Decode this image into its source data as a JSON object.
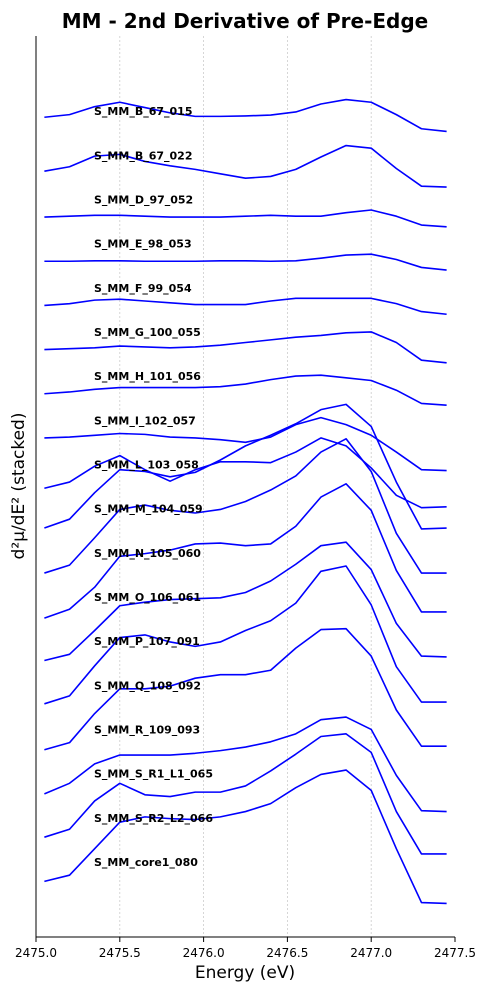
{
  "chart_data": {
    "type": "line",
    "title": "MM - 2nd Derivative of Pre-Edge",
    "xlabel": "Energy (eV)",
    "ylabel": "d²μ/dE² (stacked)",
    "xlim": [
      2475.0,
      2477.5
    ],
    "x_ticks": [
      2475.0,
      2475.5,
      2476.0,
      2476.5,
      2477.0,
      2477.5
    ],
    "x_tick_labels": [
      "2475.0",
      "2475.5",
      "2476.0",
      "2476.5",
      "2477.0",
      "2477.5"
    ],
    "y_ticks_shown": false,
    "grid": "vertical dotted",
    "line_color": "#0000ff",
    "stack_offset": 1,
    "ylim": [
      -1.2,
      19.2
    ],
    "x": [
      2475.05,
      2475.2,
      2475.35,
      2475.5,
      2475.65,
      2475.8,
      2475.95,
      2476.1,
      2476.25,
      2476.4,
      2476.55,
      2476.7,
      2476.85,
      2477.0,
      2477.15,
      2477.3,
      2477.45
    ],
    "series": [
      {
        "name": "S_MM_B_67_015",
        "values": [
          0.36,
          0.42,
          0.6,
          0.7,
          0.58,
          0.46,
          0.38,
          0.38,
          0.39,
          0.41,
          0.48,
          0.66,
          0.76,
          0.7,
          0.42,
          0.1,
          0.04
        ]
      },
      {
        "name": "S_MM_B_67_022",
        "values": [
          0.14,
          0.24,
          0.48,
          0.52,
          0.36,
          0.26,
          0.18,
          0.08,
          -0.02,
          0.02,
          0.18,
          0.46,
          0.72,
          0.66,
          0.2,
          -0.2,
          -0.22
        ]
      },
      {
        "name": "S_MM_D_97_052",
        "values": [
          0.1,
          0.12,
          0.14,
          0.14,
          0.12,
          0.1,
          0.1,
          0.1,
          0.12,
          0.14,
          0.12,
          0.12,
          0.2,
          0.26,
          0.12,
          -0.08,
          -0.12
        ]
      },
      {
        "name": "S_MM_E_98_053",
        "values": [
          0.1,
          0.1,
          0.11,
          0.11,
          0.1,
          0.1,
          0.1,
          0.11,
          0.11,
          0.1,
          0.11,
          0.17,
          0.24,
          0.26,
          0.14,
          -0.04,
          -0.1
        ]
      },
      {
        "name": "S_MM_F_99_054",
        "values": [
          0.1,
          0.14,
          0.22,
          0.24,
          0.2,
          0.16,
          0.12,
          0.12,
          0.12,
          0.2,
          0.26,
          0.26,
          0.26,
          0.26,
          0.14,
          -0.04,
          -0.1
        ]
      },
      {
        "name": "S_MM_G_100_055",
        "values": [
          0.1,
          0.12,
          0.14,
          0.18,
          0.16,
          0.14,
          0.16,
          0.2,
          0.26,
          0.32,
          0.38,
          0.42,
          0.48,
          0.5,
          0.26,
          -0.14,
          -0.2
        ]
      },
      {
        "name": "S_MM_H_101_056",
        "values": [
          0.1,
          0.14,
          0.2,
          0.24,
          0.24,
          0.24,
          0.24,
          0.26,
          0.32,
          0.42,
          0.5,
          0.52,
          0.46,
          0.4,
          0.18,
          -0.12,
          -0.16
        ]
      },
      {
        "name": "S_MM_I_102_057",
        "values": [
          0.1,
          0.12,
          0.16,
          0.2,
          0.18,
          0.12,
          0.1,
          0.06,
          0.0,
          0.12,
          0.4,
          0.56,
          0.4,
          0.16,
          -0.22,
          -0.62,
          -0.64
        ]
      },
      {
        "name": "S_MM_L_103_058",
        "values": [
          -0.04,
          0.1,
          0.46,
          0.7,
          0.38,
          0.12,
          0.38,
          0.56,
          0.56,
          0.54,
          0.78,
          1.1,
          0.92,
          0.42,
          -0.2,
          -0.48,
          -0.46
        ]
      },
      {
        "name": "S_MM_M_104_059",
        "values": [
          0.06,
          0.26,
          0.86,
          1.38,
          1.34,
          1.22,
          1.32,
          1.6,
          1.92,
          2.16,
          2.42,
          2.74,
          2.86,
          2.36,
          1.1,
          0.04,
          0.06
        ]
      },
      {
        "name": "S_MM_N_105_060",
        "values": [
          0.04,
          0.22,
          0.84,
          1.48,
          1.58,
          1.46,
          1.4,
          1.48,
          1.66,
          1.92,
          2.24,
          2.78,
          3.08,
          2.34,
          0.94,
          0.04,
          0.04
        ]
      },
      {
        "name": "S_MM_O_106_061",
        "values": [
          0.02,
          0.22,
          0.72,
          1.42,
          1.48,
          1.56,
          1.7,
          1.72,
          1.66,
          1.7,
          2.1,
          2.76,
          3.06,
          2.46,
          1.1,
          0.16,
          0.16
        ]
      },
      {
        "name": "S_MM_P_107_091",
        "values": [
          0.06,
          0.2,
          0.74,
          1.3,
          1.38,
          1.44,
          1.46,
          1.48,
          1.6,
          1.86,
          2.24,
          2.66,
          2.74,
          2.12,
          0.9,
          0.16,
          0.14
        ]
      },
      {
        "name": "S_MM_Q_108_092",
        "values": [
          0.08,
          0.26,
          0.94,
          1.58,
          1.64,
          1.48,
          1.38,
          1.48,
          1.74,
          1.96,
          2.36,
          3.08,
          3.2,
          2.32,
          0.92,
          0.12,
          0.12
        ]
      },
      {
        "name": "S_MM_R_109_093",
        "values": [
          0.04,
          0.2,
          0.86,
          1.42,
          1.42,
          1.48,
          1.66,
          1.74,
          1.74,
          1.84,
          2.34,
          2.76,
          2.78,
          2.16,
          0.94,
          0.12,
          0.12
        ]
      },
      {
        "name": "S_MM_S_R1_L1_065",
        "values": [
          0.04,
          0.28,
          0.72,
          0.92,
          0.92,
          0.92,
          0.96,
          1.02,
          1.1,
          1.22,
          1.4,
          1.72,
          1.78,
          1.5,
          0.46,
          -0.34,
          -0.36
        ]
      },
      {
        "name": "S_MM_S_R2_L2_066",
        "values": [
          0.06,
          0.24,
          0.88,
          1.28,
          1.02,
          0.98,
          1.08,
          1.08,
          1.22,
          1.56,
          1.94,
          2.34,
          2.4,
          1.98,
          0.64,
          -0.32,
          -0.32
        ]
      },
      {
        "name": "S_MM_core1_080",
        "values": [
          0.06,
          0.2,
          0.8,
          1.4,
          1.52,
          1.48,
          1.46,
          1.52,
          1.64,
          1.82,
          2.18,
          2.48,
          2.58,
          2.12,
          0.8,
          -0.42,
          -0.44
        ]
      }
    ]
  }
}
